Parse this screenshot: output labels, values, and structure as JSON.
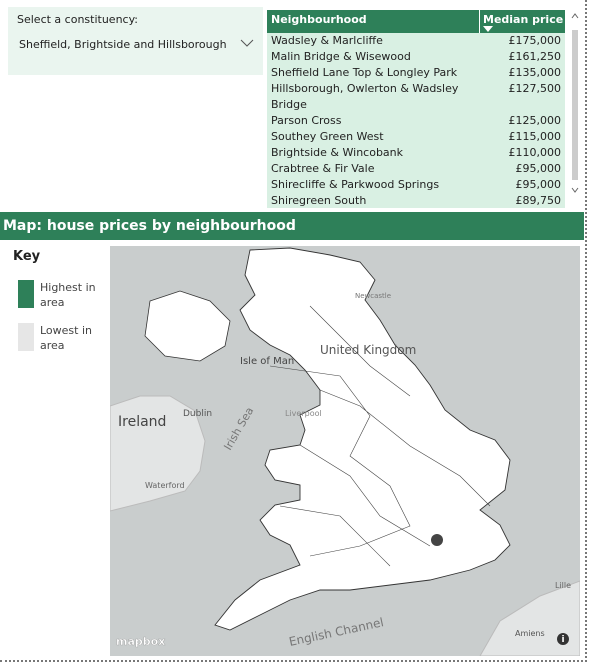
{
  "filter": {
    "label": "Select a constituency:",
    "value": "Sheffield, Brightside and Hillsborough"
  },
  "table": {
    "columns": [
      "Neighbourhood",
      "Median price"
    ],
    "rows": [
      [
        "Wadsley & Marlcliffe",
        "£175,000"
      ],
      [
        "Malin Bridge & Wisewood",
        "£161,250"
      ],
      [
        "Sheffield Lane Top & Longley Park",
        "£135,000"
      ],
      [
        "Hillsborough, Owlerton & Wadsley Bridge",
        "£127,500"
      ],
      [
        "Parson Cross",
        "£125,000"
      ],
      [
        "Southey Green West",
        "£115,000"
      ],
      [
        "Brightside & Wincobank",
        "£110,000"
      ],
      [
        "Crabtree & Fir Vale",
        "£95,000"
      ],
      [
        "Shirecliffe & Parkwood Springs",
        "£95,000"
      ],
      [
        "Shiregreen South",
        "£89,750"
      ]
    ]
  },
  "map": {
    "title": "Map: house prices by neighbourhood",
    "key": {
      "title": "Key",
      "items": [
        {
          "label": "Highest in area",
          "color": "#2e8059"
        },
        {
          "label": "Lowest in area",
          "color": "#e6e6e6"
        }
      ]
    },
    "labels": [
      "United Kingdom",
      "Ireland",
      "Isle of Man",
      "Irish Sea",
      "Dublin",
      "Liverpool",
      "Waterford",
      "English Channel",
      "Amiens",
      "Lille",
      "Newcastle"
    ],
    "attribution": "mapbox"
  }
}
